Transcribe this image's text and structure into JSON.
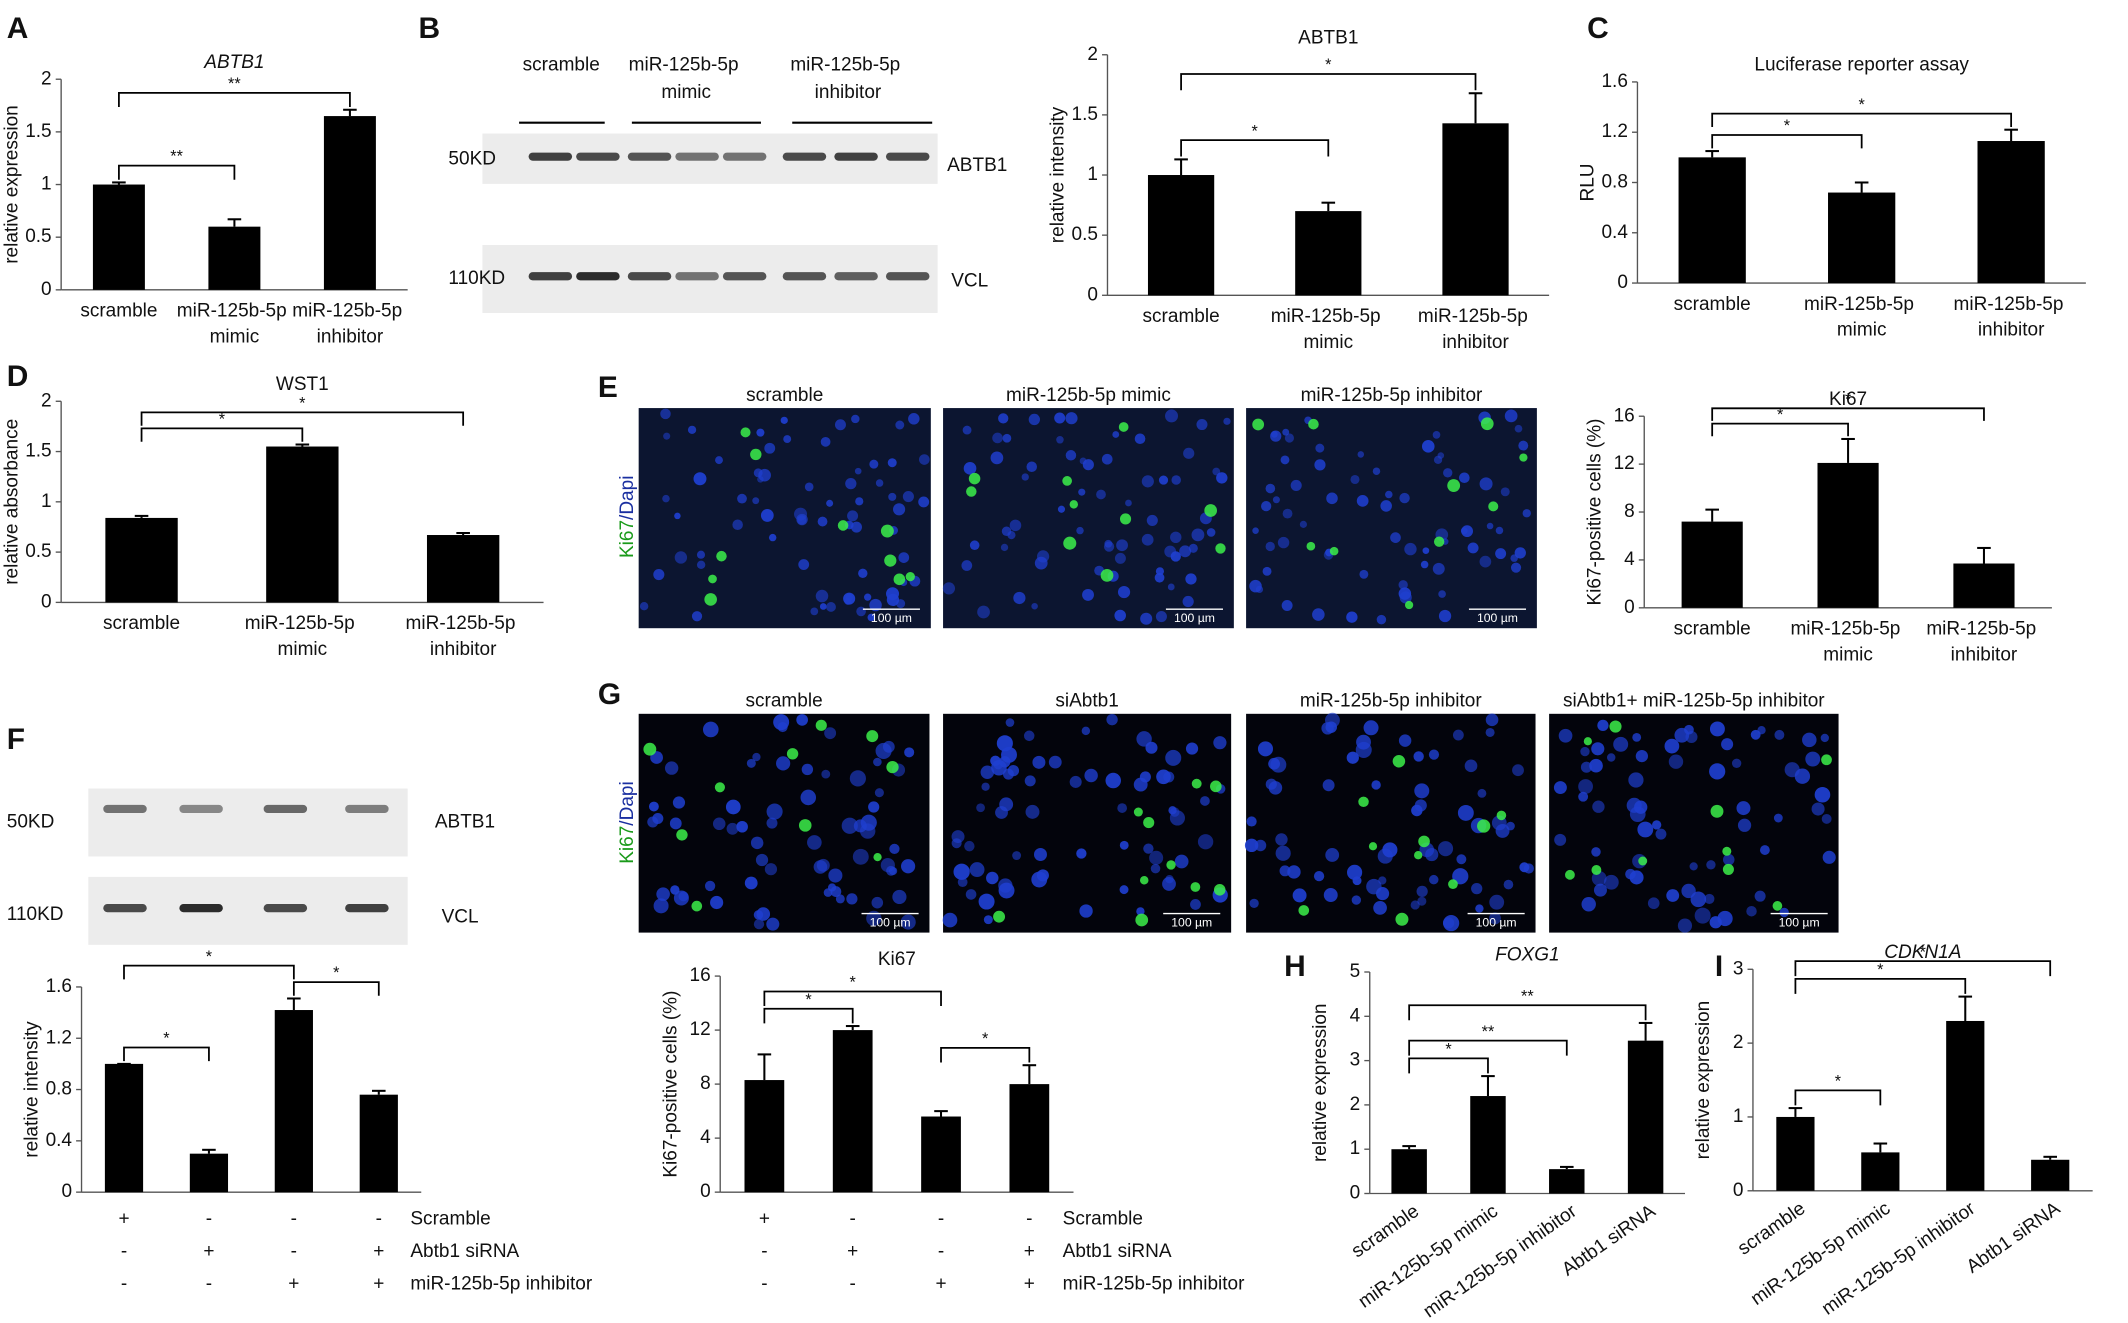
{
  "panels": [
    "A",
    "B",
    "C",
    "D",
    "E",
    "F",
    "G",
    "H",
    "I"
  ],
  "chart_data": [
    {
      "type": "bar",
      "title": "ABTB1",
      "title_italic": true,
      "ylabel": "relative expression",
      "categories": [
        "scramble",
        "miR-125b-5p mimic",
        "miR-125b-5p inhibitor"
      ],
      "values": [
        1.0,
        0.6,
        1.65
      ],
      "errors": [
        0.02,
        0.07,
        0.06
      ],
      "color": "#000000",
      "ylim": [
        0,
        2
      ],
      "yticks": [
        0,
        0.5,
        1,
        1.5,
        2
      ],
      "significance": [
        {
          "bars": [
            0,
            1
          ],
          "label": "**"
        },
        {
          "bars": [
            0,
            2
          ],
          "label": "**"
        }
      ]
    },
    {
      "type": "bar",
      "title": "ABTB1",
      "ylabel": "relative intensity",
      "categories": [
        "scramble",
        "miR-125b-5p mimic",
        "miR-125b-5p inhibitor"
      ],
      "values": [
        1.0,
        0.7,
        1.43
      ],
      "errors": [
        0.13,
        0.07,
        0.25
      ],
      "color": "#000000",
      "ylim": [
        0,
        2
      ],
      "yticks": [
        0,
        0.5,
        1,
        1.5,
        2
      ],
      "significance": [
        {
          "bars": [
            0,
            1
          ],
          "label": "*"
        },
        {
          "bars": [
            0,
            2
          ],
          "label": "*"
        }
      ]
    },
    {
      "type": "bar",
      "title": "Luciferase reporter assay",
      "ylabel": "RLU",
      "categories": [
        "scramble",
        "miR-125b-5p mimic",
        "miR-125b-5p inhibitor"
      ],
      "values": [
        1.0,
        0.72,
        1.13
      ],
      "errors": [
        0.05,
        0.08,
        0.09
      ],
      "color": "#000000",
      "ylim": [
        0,
        1.6
      ],
      "yticks": [
        0,
        0.4,
        0.8,
        1.2,
        1.6
      ],
      "significance": [
        {
          "bars": [
            0,
            1
          ],
          "label": "*"
        },
        {
          "bars": [
            0,
            2
          ],
          "label": "*"
        }
      ]
    },
    {
      "type": "bar",
      "title": "WST1",
      "ylabel": "relative absorbance",
      "categories": [
        "scramble",
        "miR-125b-5p mimic",
        "miR-125b-5p inhibitor"
      ],
      "values": [
        0.84,
        1.55,
        0.67
      ],
      "errors": [
        0.02,
        0.02,
        0.02
      ],
      "color": "#000000",
      "ylim": [
        0,
        2
      ],
      "yticks": [
        0,
        0.5,
        1,
        1.5,
        2
      ],
      "significance": [
        {
          "bars": [
            0,
            1
          ],
          "label": "*"
        },
        {
          "bars": [
            0,
            2
          ],
          "label": "*"
        }
      ]
    },
    {
      "type": "bar",
      "title": "Ki67",
      "ylabel": "Ki67-positive cells (%)",
      "categories": [
        "scramble",
        "miR-125b-5p mimic",
        "miR-125b-5p inhibitor"
      ],
      "values": [
        7.2,
        12.1,
        3.7
      ],
      "errors": [
        1.0,
        2.0,
        1.3
      ],
      "color": "#000000",
      "ylim": [
        0,
        16
      ],
      "yticks": [
        0,
        4,
        8,
        12,
        16
      ],
      "significance": [
        {
          "bars": [
            0,
            1
          ],
          "label": "*"
        },
        {
          "bars": [
            0,
            2
          ],
          "label": "*"
        }
      ]
    },
    {
      "type": "bar",
      "ylabel": "relative intensity",
      "values": [
        1.0,
        0.3,
        1.42,
        0.76
      ],
      "errors": [
        0,
        0.03,
        0.09,
        0.03
      ],
      "color": "#000000",
      "ylim": [
        0,
        1.6
      ],
      "yticks": [
        0,
        0.4,
        0.8,
        1.2,
        1.6
      ],
      "conditions": [
        {
          "name": "Scramble",
          "signs": [
            "+",
            "-",
            "-",
            "-"
          ]
        },
        {
          "name": "Abtb1 siRNA",
          "signs": [
            "-",
            "+",
            "-",
            "+"
          ]
        },
        {
          "name": "miR-125b-5p inhibitor",
          "signs": [
            "-",
            "-",
            "+",
            "+"
          ]
        }
      ],
      "significance": [
        {
          "bars": [
            0,
            1
          ],
          "label": "*"
        },
        {
          "bars": [
            2,
            3
          ],
          "label": "*"
        },
        {
          "bars": [
            0,
            2
          ],
          "label": "*"
        }
      ]
    },
    {
      "type": "bar",
      "title": "Ki67",
      "ylabel": "Ki67-positive cells (%)",
      "values": [
        8.3,
        12,
        5.6,
        8
      ],
      "errors": [
        1.9,
        0.3,
        0.4,
        1.4
      ],
      "color": "#000000",
      "ylim": [
        0,
        16
      ],
      "yticks": [
        0,
        4,
        8,
        12,
        16
      ],
      "conditions": [
        {
          "name": "Scramble",
          "signs": [
            "+",
            "-",
            "-",
            "-"
          ]
        },
        {
          "name": "Abtb1 siRNA",
          "signs": [
            "-",
            "+",
            "-",
            "+"
          ]
        },
        {
          "name": "miR-125b-5p inhibitor",
          "signs": [
            "-",
            "-",
            "+",
            "+"
          ]
        }
      ],
      "significance": [
        {
          "bars": [
            0,
            1
          ],
          "label": "*"
        },
        {
          "bars": [
            2,
            3
          ],
          "label": "*"
        },
        {
          "bars": [
            0,
            2
          ],
          "label": "*"
        }
      ]
    },
    {
      "type": "bar",
      "title": "FOXG1",
      "title_italic": true,
      "ylabel": "relative expression",
      "rotated_labels": true,
      "categories": [
        "scramble",
        "miR-125b-5p mimic",
        "miR-125b-5p inhibitor",
        "Abtb1 siRNA"
      ],
      "values": [
        1.0,
        2.2,
        0.55,
        3.45
      ],
      "errors": [
        0.07,
        0.45,
        0.05,
        0.4
      ],
      "color": "#000000",
      "ylim": [
        0,
        5
      ],
      "yticks": [
        0,
        1,
        2,
        3,
        4,
        5
      ],
      "significance": [
        {
          "bars": [
            0,
            1
          ],
          "label": "*"
        },
        {
          "bars": [
            0,
            2
          ],
          "label": "**"
        },
        {
          "bars": [
            0,
            3
          ],
          "label": "**"
        }
      ]
    },
    {
      "type": "bar",
      "title": "CDKN1A",
      "title_italic": true,
      "ylabel": "relative expression",
      "rotated_labels": true,
      "categories": [
        "scramble",
        "miR-125b-5p mimic",
        "miR-125b-5p inhibitor",
        "Abtb1 siRNA"
      ],
      "values": [
        1.0,
        0.52,
        2.3,
        0.42
      ],
      "errors": [
        0.12,
        0.12,
        0.33,
        0.04
      ],
      "color": "#000000",
      "ylim": [
        0,
        3
      ],
      "yticks": [
        0,
        1,
        2,
        3
      ],
      "significance": [
        {
          "bars": [
            0,
            1
          ],
          "label": "*"
        },
        {
          "bars": [
            0,
            2
          ],
          "label": "*"
        },
        {
          "bars": [
            0,
            3
          ],
          "label": "*"
        }
      ]
    }
  ],
  "blots": [
    {
      "groups": [
        "scramble",
        "miR-125b-5p mimic",
        "miR-125b-5p inhibitor"
      ],
      "markers": [
        "50KD",
        "110KD"
      ],
      "proteins": [
        "ABTB1",
        "VCL"
      ]
    },
    {
      "markers": [
        "50KD",
        "110KD"
      ],
      "proteins": [
        "ABTB1",
        "VCL"
      ]
    }
  ],
  "micrographs": [
    {
      "stain": [
        "Ki67",
        "/Dapi"
      ],
      "titles": [
        "scramble",
        "miR-125b-5p mimic",
        "miR-125b-5p inhibitor"
      ],
      "scale_bar": "100 µm"
    },
    {
      "stain": [
        "Ki67",
        "/Dapi"
      ],
      "titles": [
        "scramble",
        "siAbtb1",
        "miR-125b-5p inhibitor",
        "siAbtb1+ miR-125b-5p inhibitor"
      ],
      "scale_bar": "100 µm"
    }
  ]
}
